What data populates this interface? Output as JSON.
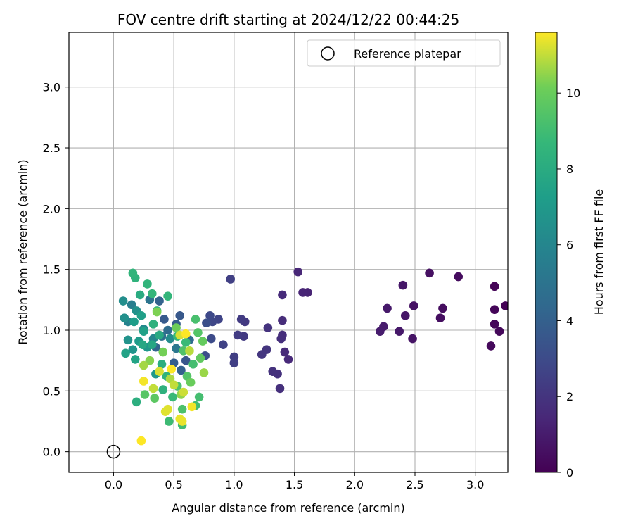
{
  "chart_data": {
    "type": "scatter",
    "title": "FOV centre drift starting at 2024/12/22 00:44:25",
    "xlabel": "Angular distance from reference (arcmin)",
    "ylabel": "Rotation from reference (arcmin)",
    "xlim": [
      -0.37,
      3.27
    ],
    "ylim": [
      -0.17,
      3.45
    ],
    "xticks": [
      "0.0",
      "0.5",
      "1.0",
      "1.5",
      "2.0",
      "2.5",
      "3.0"
    ],
    "yticks": [
      "0.0",
      "0.5",
      "1.0",
      "1.5",
      "2.0",
      "2.5",
      "3.0"
    ],
    "grid": true,
    "colorbar": {
      "label": "Hours from first FF file",
      "range": [
        0,
        11.6
      ],
      "ticks": [
        "0",
        "2",
        "4",
        "6",
        "8",
        "10"
      ],
      "colormap": "viridis"
    },
    "legend": {
      "placement": "top-right",
      "entries": [
        {
          "label": "Reference platepar",
          "marker": "hollow-circle"
        }
      ]
    },
    "reference_point": {
      "x": 0.0,
      "y": 0.0
    },
    "points": [
      {
        "x": 3.25,
        "y": 1.2,
        "c": 0.05
      },
      {
        "x": 3.16,
        "y": 1.36,
        "c": 0.1
      },
      {
        "x": 3.16,
        "y": 1.17,
        "c": 0.15
      },
      {
        "x": 3.16,
        "y": 1.05,
        "c": 0.2
      },
      {
        "x": 3.2,
        "y": 0.99,
        "c": 0.25
      },
      {
        "x": 3.13,
        "y": 0.87,
        "c": 0.3
      },
      {
        "x": 2.86,
        "y": 1.44,
        "c": 0.4
      },
      {
        "x": 2.73,
        "y": 1.18,
        "c": 0.45
      },
      {
        "x": 2.71,
        "y": 1.1,
        "c": 0.5
      },
      {
        "x": 2.62,
        "y": 1.47,
        "c": 0.55
      },
      {
        "x": 2.49,
        "y": 1.2,
        "c": 0.65
      },
      {
        "x": 2.48,
        "y": 0.93,
        "c": 0.7
      },
      {
        "x": 2.42,
        "y": 1.12,
        "c": 0.75
      },
      {
        "x": 2.4,
        "y": 1.37,
        "c": 0.8
      },
      {
        "x": 2.37,
        "y": 0.99,
        "c": 0.85
      },
      {
        "x": 2.27,
        "y": 1.18,
        "c": 0.9
      },
      {
        "x": 2.24,
        "y": 1.03,
        "c": 0.95
      },
      {
        "x": 2.21,
        "y": 0.99,
        "c": 1.0
      },
      {
        "x": 1.61,
        "y": 1.31,
        "c": 1.3
      },
      {
        "x": 1.57,
        "y": 1.31,
        "c": 1.35
      },
      {
        "x": 1.53,
        "y": 1.48,
        "c": 1.4
      },
      {
        "x": 1.45,
        "y": 0.76,
        "c": 1.5
      },
      {
        "x": 1.42,
        "y": 0.82,
        "c": 1.55
      },
      {
        "x": 1.4,
        "y": 1.29,
        "c": 1.6
      },
      {
        "x": 1.4,
        "y": 1.08,
        "c": 1.65
      },
      {
        "x": 1.4,
        "y": 0.96,
        "c": 1.7
      },
      {
        "x": 1.39,
        "y": 0.93,
        "c": 1.75
      },
      {
        "x": 1.38,
        "y": 0.52,
        "c": 1.8
      },
      {
        "x": 1.36,
        "y": 0.64,
        "c": 1.85
      },
      {
        "x": 1.32,
        "y": 0.66,
        "c": 1.9
      },
      {
        "x": 1.28,
        "y": 1.02,
        "c": 1.95
      },
      {
        "x": 1.27,
        "y": 0.84,
        "c": 2.0
      },
      {
        "x": 1.23,
        "y": 0.8,
        "c": 2.05
      },
      {
        "x": 1.09,
        "y": 1.07,
        "c": 2.2
      },
      {
        "x": 1.08,
        "y": 0.95,
        "c": 2.25
      },
      {
        "x": 1.06,
        "y": 1.09,
        "c": 2.3
      },
      {
        "x": 1.03,
        "y": 0.96,
        "c": 2.35
      },
      {
        "x": 1.0,
        "y": 0.78,
        "c": 2.4
      },
      {
        "x": 1.0,
        "y": 0.73,
        "c": 2.45
      },
      {
        "x": 0.97,
        "y": 1.42,
        "c": 2.5
      },
      {
        "x": 0.91,
        "y": 0.88,
        "c": 2.6
      },
      {
        "x": 0.87,
        "y": 1.09,
        "c": 2.7
      },
      {
        "x": 0.82,
        "y": 1.07,
        "c": 2.8
      },
      {
        "x": 0.8,
        "y": 1.12,
        "c": 2.9
      },
      {
        "x": 0.81,
        "y": 0.93,
        "c": 3.0
      },
      {
        "x": 0.76,
        "y": 0.79,
        "c": 3.1
      },
      {
        "x": 0.77,
        "y": 1.06,
        "c": 3.2
      },
      {
        "x": 0.6,
        "y": 0.75,
        "c": 3.5
      },
      {
        "x": 0.55,
        "y": 1.12,
        "c": 3.6
      },
      {
        "x": 0.42,
        "y": 1.09,
        "c": 3.7
      },
      {
        "x": 0.52,
        "y": 1.05,
        "c": 3.8
      },
      {
        "x": 0.5,
        "y": 0.73,
        "c": 3.9
      },
      {
        "x": 0.56,
        "y": 0.67,
        "c": 4.0
      },
      {
        "x": 0.38,
        "y": 1.24,
        "c": 4.1
      },
      {
        "x": 0.35,
        "y": 0.86,
        "c": 4.2
      },
      {
        "x": 0.63,
        "y": 0.92,
        "c": 4.5
      },
      {
        "x": 0.45,
        "y": 1.0,
        "c": 4.6
      },
      {
        "x": 0.4,
        "y": 0.95,
        "c": 4.8
      },
      {
        "x": 0.3,
        "y": 1.25,
        "c": 5.0
      },
      {
        "x": 0.52,
        "y": 0.85,
        "c": 5.2
      },
      {
        "x": 0.15,
        "y": 1.21,
        "c": 5.6
      },
      {
        "x": 0.12,
        "y": 1.07,
        "c": 5.8
      },
      {
        "x": 0.33,
        "y": 0.93,
        "c": 6.0
      },
      {
        "x": 0.25,
        "y": 1.01,
        "c": 6.2
      },
      {
        "x": 0.47,
        "y": 0.93,
        "c": 6.3
      },
      {
        "x": 0.08,
        "y": 1.24,
        "c": 6.4
      },
      {
        "x": 0.09,
        "y": 1.1,
        "c": 6.5
      },
      {
        "x": 0.19,
        "y": 1.16,
        "c": 6.6
      },
      {
        "x": 0.12,
        "y": 0.92,
        "c": 6.7
      },
      {
        "x": 0.16,
        "y": 0.84,
        "c": 6.8
      },
      {
        "x": 0.28,
        "y": 0.86,
        "c": 6.9
      },
      {
        "x": 0.35,
        "y": 0.64,
        "c": 7.0
      },
      {
        "x": 0.21,
        "y": 0.91,
        "c": 7.1
      },
      {
        "x": 0.17,
        "y": 1.07,
        "c": 7.2
      },
      {
        "x": 0.23,
        "y": 1.12,
        "c": 7.3
      },
      {
        "x": 0.25,
        "y": 0.99,
        "c": 7.4
      },
      {
        "x": 0.1,
        "y": 0.81,
        "c": 7.5
      },
      {
        "x": 0.18,
        "y": 0.76,
        "c": 7.6
      },
      {
        "x": 0.32,
        "y": 0.88,
        "c": 7.7
      },
      {
        "x": 0.24,
        "y": 0.88,
        "c": 7.8
      },
      {
        "x": 0.38,
        "y": 0.96,
        "c": 7.9
      },
      {
        "x": 0.22,
        "y": 1.29,
        "c": 8.0
      },
      {
        "x": 0.4,
        "y": 0.72,
        "c": 8.1
      },
      {
        "x": 0.19,
        "y": 0.41,
        "c": 8.2
      },
      {
        "x": 0.33,
        "y": 1.05,
        "c": 8.3
      },
      {
        "x": 0.41,
        "y": 0.51,
        "c": 8.3
      },
      {
        "x": 0.44,
        "y": 0.62,
        "c": 8.4
      },
      {
        "x": 0.18,
        "y": 1.43,
        "c": 8.4
      },
      {
        "x": 0.16,
        "y": 1.47,
        "c": 8.5
      },
      {
        "x": 0.28,
        "y": 1.38,
        "c": 8.5
      },
      {
        "x": 0.32,
        "y": 1.3,
        "c": 8.6
      },
      {
        "x": 0.45,
        "y": 1.28,
        "c": 8.6
      },
      {
        "x": 0.36,
        "y": 1.16,
        "c": 8.7
      },
      {
        "x": 0.53,
        "y": 0.95,
        "c": 8.7
      },
      {
        "x": 0.6,
        "y": 0.9,
        "c": 8.8
      },
      {
        "x": 0.49,
        "y": 0.45,
        "c": 8.8
      },
      {
        "x": 0.46,
        "y": 0.25,
        "c": 8.9
      },
      {
        "x": 0.57,
        "y": 0.22,
        "c": 9.0
      },
      {
        "x": 0.68,
        "y": 0.38,
        "c": 9.0
      },
      {
        "x": 0.71,
        "y": 0.45,
        "c": 9.1
      },
      {
        "x": 0.66,
        "y": 0.72,
        "c": 9.1
      },
      {
        "x": 0.68,
        "y": 1.09,
        "c": 9.2
      },
      {
        "x": 0.57,
        "y": 0.35,
        "c": 9.3
      },
      {
        "x": 0.53,
        "y": 0.54,
        "c": 9.3
      },
      {
        "x": 0.58,
        "y": 0.83,
        "c": 9.4
      },
      {
        "x": 0.7,
        "y": 0.98,
        "c": 9.5
      },
      {
        "x": 0.61,
        "y": 0.62,
        "c": 9.5
      },
      {
        "x": 0.26,
        "y": 0.47,
        "c": 9.6
      },
      {
        "x": 0.34,
        "y": 0.44,
        "c": 9.7
      },
      {
        "x": 0.72,
        "y": 0.77,
        "c": 9.8
      },
      {
        "x": 0.74,
        "y": 0.91,
        "c": 9.9
      },
      {
        "x": 0.64,
        "y": 0.57,
        "c": 10.0
      },
      {
        "x": 0.52,
        "y": 1.02,
        "c": 10.1
      },
      {
        "x": 0.41,
        "y": 0.82,
        "c": 10.2
      },
      {
        "x": 0.36,
        "y": 1.15,
        "c": 10.3
      },
      {
        "x": 0.3,
        "y": 0.75,
        "c": 10.4
      },
      {
        "x": 0.56,
        "y": 0.47,
        "c": 10.5
      },
      {
        "x": 0.75,
        "y": 0.65,
        "c": 10.6
      },
      {
        "x": 0.25,
        "y": 0.71,
        "c": 10.7
      },
      {
        "x": 0.47,
        "y": 0.6,
        "c": 10.8
      },
      {
        "x": 0.63,
        "y": 0.83,
        "c": 10.9
      },
      {
        "x": 0.33,
        "y": 0.52,
        "c": 11.0
      },
      {
        "x": 0.5,
        "y": 0.55,
        "c": 11.0
      },
      {
        "x": 0.58,
        "y": 0.49,
        "c": 11.1
      },
      {
        "x": 0.55,
        "y": 0.96,
        "c": 11.2
      },
      {
        "x": 0.38,
        "y": 0.66,
        "c": 11.2
      },
      {
        "x": 0.43,
        "y": 0.33,
        "c": 11.3
      },
      {
        "x": 0.45,
        "y": 0.35,
        "c": 11.3
      },
      {
        "x": 0.55,
        "y": 0.27,
        "c": 11.4
      },
      {
        "x": 0.57,
        "y": 0.25,
        "c": 11.4
      },
      {
        "x": 0.65,
        "y": 0.37,
        "c": 11.5
      },
      {
        "x": 0.25,
        "y": 0.58,
        "c": 11.5
      },
      {
        "x": 0.23,
        "y": 0.09,
        "c": 11.6
      },
      {
        "x": 0.48,
        "y": 0.68,
        "c": 11.6
      },
      {
        "x": 0.6,
        "y": 0.97,
        "c": 11.6
      }
    ]
  }
}
